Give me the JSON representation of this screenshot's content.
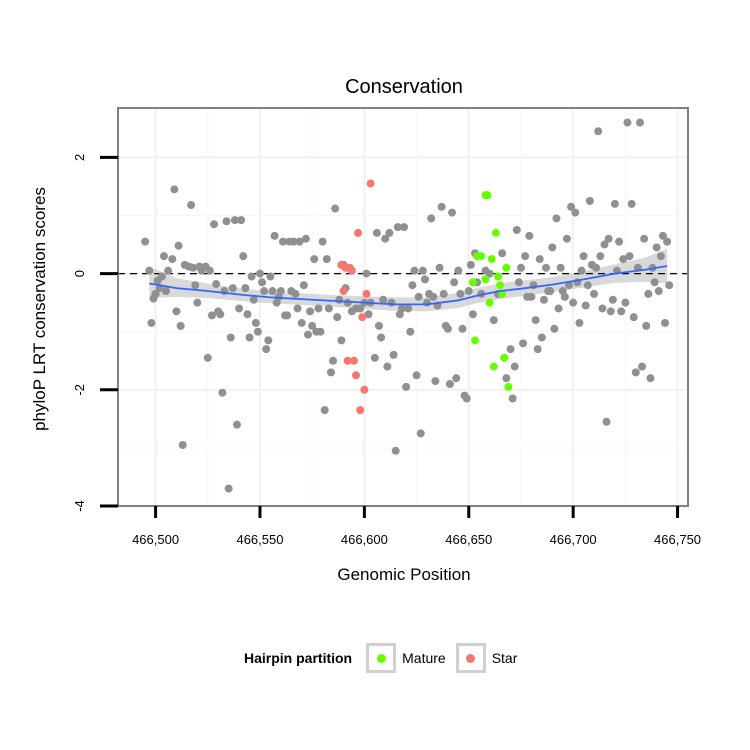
{
  "chart_data": {
    "type": "scatter",
    "title": "Conservation",
    "xlabel": "Genomic Position",
    "ylabel": "phyloP LRT conservation scores",
    "xlim": [
      466482,
      466755
    ],
    "ylim": [
      -4,
      2.85
    ],
    "x_ticks": [
      466500,
      466550,
      466600,
      466650,
      466700,
      466750
    ],
    "x_tick_labels": [
      "466,500",
      "466,550",
      "466,600",
      "466,650",
      "466,700",
      "466,750"
    ],
    "y_ticks": [
      -4,
      -2,
      0,
      2
    ],
    "y_tick_labels": [
      "-4",
      "-2",
      "0",
      "2"
    ],
    "reference_line_y": 0,
    "legend": {
      "title": "Hairpin partition",
      "position": "bottom",
      "entries": [
        {
          "label": "Mature",
          "color": "#66ff00"
        },
        {
          "label": "Star",
          "color": "#f8766d"
        }
      ]
    },
    "colors": {
      "other": "#909090",
      "smooth_line": "#3366ff",
      "band": "#cccccc",
      "reference_line": "#000000",
      "panel_border": "#808080"
    },
    "smooth": {
      "x": [
        466497,
        466510,
        466525,
        466540,
        466555,
        466570,
        466585,
        466600,
        466615,
        466630,
        466645,
        466655,
        466665,
        466675,
        466690,
        466705,
        466720,
        466735,
        466745
      ],
      "y": [
        -0.17,
        -0.25,
        -0.3,
        -0.36,
        -0.41,
        -0.44,
        -0.47,
        -0.5,
        -0.53,
        -0.53,
        -0.46,
        -0.37,
        -0.3,
        -0.26,
        -0.19,
        -0.1,
        0.0,
        0.07,
        0.13
      ],
      "lower": [
        -0.42,
        -0.4,
        -0.42,
        -0.47,
        -0.51,
        -0.54,
        -0.57,
        -0.61,
        -0.64,
        -0.65,
        -0.59,
        -0.5,
        -0.44,
        -0.39,
        -0.32,
        -0.24,
        -0.16,
        -0.14,
        -0.17
      ],
      "upper": [
        0.12,
        -0.08,
        -0.17,
        -0.25,
        -0.31,
        -0.34,
        -0.37,
        -0.39,
        -0.41,
        -0.41,
        -0.33,
        -0.24,
        -0.17,
        -0.12,
        -0.06,
        0.04,
        0.16,
        0.28,
        0.43
      ]
    },
    "series": [
      {
        "name": "Other",
        "color": "#909090",
        "points": [
          [
            466495,
            0.55
          ],
          [
            466497,
            0.05
          ],
          [
            466498,
            -0.85
          ],
          [
            466499,
            -0.43
          ],
          [
            466500,
            -0.35
          ],
          [
            466501,
            -0.12
          ],
          [
            466502,
            -0.25
          ],
          [
            466503,
            -0.05
          ],
          [
            466504,
            0.3
          ],
          [
            466505,
            -0.3
          ],
          [
            466506,
            0.05
          ],
          [
            466508,
            0.25
          ],
          [
            466509,
            1.45
          ],
          [
            466510,
            -0.65
          ],
          [
            466511,
            0.48
          ],
          [
            466512,
            -0.9
          ],
          [
            466513,
            -2.95
          ],
          [
            466514,
            0.15
          ],
          [
            466516,
            0.12
          ],
          [
            466517,
            1.18
          ],
          [
            466518,
            0.1
          ],
          [
            466519,
            -0.2
          ],
          [
            466520,
            -0.5
          ],
          [
            466521,
            0.12
          ],
          [
            466522,
            0.05
          ],
          [
            466524,
            0.12
          ],
          [
            466525,
            -1.45
          ],
          [
            466526,
            0.05
          ],
          [
            466527,
            -0.72
          ],
          [
            466528,
            0.85
          ],
          [
            466529,
            -0.18
          ],
          [
            466530,
            -0.65
          ],
          [
            466531,
            -0.7
          ],
          [
            466532,
            -2.05
          ],
          [
            466533,
            -0.3
          ],
          [
            466534,
            0.9
          ],
          [
            466535,
            -3.7
          ],
          [
            466536,
            -1.1
          ],
          [
            466537,
            -0.25
          ],
          [
            466538,
            0.92
          ],
          [
            466539,
            -2.6
          ],
          [
            466540,
            -0.6
          ],
          [
            466541,
            0.92
          ],
          [
            466542,
            0.3
          ],
          [
            466543,
            -0.25
          ],
          [
            466544,
            -0.7
          ],
          [
            466545,
            -1.1
          ],
          [
            466546,
            -0.05
          ],
          [
            466547,
            -0.45
          ],
          [
            466548,
            -0.85
          ],
          [
            466549,
            -1.0
          ],
          [
            466550,
            0.0
          ],
          [
            466551,
            -0.15
          ],
          [
            466552,
            -0.3
          ],
          [
            466553,
            -1.3
          ],
          [
            466554,
            -1.15
          ],
          [
            466555,
            -0.05
          ],
          [
            466556,
            -0.3
          ],
          [
            466557,
            0.65
          ],
          [
            466558,
            -0.5
          ],
          [
            466559,
            -0.4
          ],
          [
            466560,
            -0.3
          ],
          [
            466561,
            0.55
          ],
          [
            466562,
            -0.72
          ],
          [
            466563,
            -0.72
          ],
          [
            466564,
            0.55
          ],
          [
            466565,
            -0.3
          ],
          [
            466566,
            0.55
          ],
          [
            466567,
            -0.35
          ],
          [
            466568,
            -0.6
          ],
          [
            466569,
            0.55
          ],
          [
            466570,
            -0.85
          ],
          [
            466571,
            -0.2
          ],
          [
            466572,
            0.6
          ],
          [
            466573,
            -1.05
          ],
          [
            466574,
            -0.65
          ],
          [
            466575,
            -0.9
          ],
          [
            466576,
            0.25
          ],
          [
            466577,
            -1.0
          ],
          [
            466578,
            -0.6
          ],
          [
            466579,
            -1.0
          ],
          [
            466580,
            0.55
          ],
          [
            466581,
            -2.35
          ],
          [
            466582,
            0.25
          ],
          [
            466583,
            -0.6
          ],
          [
            466584,
            -1.7
          ],
          [
            466585,
            -1.5
          ],
          [
            466586,
            1.12
          ],
          [
            466587,
            -0.75
          ],
          [
            466588,
            -0.45
          ],
          [
            466589,
            -1.15
          ],
          [
            466590,
            0.15
          ],
          [
            466591,
            -0.25
          ],
          [
            466592,
            -0.5
          ],
          [
            466594,
            -0.65
          ],
          [
            466596,
            -0.6
          ],
          [
            466598,
            -0.6
          ],
          [
            466600,
            -0.5
          ],
          [
            466601,
            0.0
          ],
          [
            466602,
            -0.7
          ],
          [
            466603,
            -0.5
          ],
          [
            466605,
            -1.45
          ],
          [
            466606,
            0.7
          ],
          [
            466607,
            -0.9
          ],
          [
            466608,
            -1.1
          ],
          [
            466609,
            -0.45
          ],
          [
            466610,
            0.6
          ],
          [
            466611,
            -1.6
          ],
          [
            466612,
            0.7
          ],
          [
            466613,
            -0.5
          ],
          [
            466614,
            -1.4
          ],
          [
            466615,
            -3.05
          ],
          [
            466616,
            0.8
          ],
          [
            466617,
            -0.7
          ],
          [
            466618,
            -0.6
          ],
          [
            466619,
            0.8
          ],
          [
            466620,
            -1.95
          ],
          [
            466621,
            -0.6
          ],
          [
            466622,
            -1.0
          ],
          [
            466623,
            -0.2
          ],
          [
            466624,
            0.05
          ],
          [
            466625,
            -1.75
          ],
          [
            466626,
            -0.4
          ],
          [
            466627,
            -2.75
          ],
          [
            466628,
            0.05
          ],
          [
            466629,
            -0.1
          ],
          [
            466630,
            -0.5
          ],
          [
            466631,
            -0.35
          ],
          [
            466632,
            0.95
          ],
          [
            466633,
            -0.4
          ],
          [
            466634,
            -1.85
          ],
          [
            466635,
            -0.55
          ],
          [
            466636,
            0.1
          ],
          [
            466637,
            1.15
          ],
          [
            466638,
            -0.35
          ],
          [
            466639,
            -0.9
          ],
          [
            466640,
            -0.95
          ],
          [
            466641,
            -1.9
          ],
          [
            466642,
            1.05
          ],
          [
            466643,
            -0.15
          ],
          [
            466644,
            -1.8
          ],
          [
            466645,
            0.05
          ],
          [
            466646,
            -0.35
          ],
          [
            466647,
            -0.95
          ],
          [
            466648,
            -2.1
          ],
          [
            466649,
            -2.15
          ],
          [
            466650,
            -0.3
          ],
          [
            466651,
            0.15
          ],
          [
            466652,
            -0.7
          ],
          [
            466653,
            0.35
          ],
          [
            466654,
            -0.15
          ],
          [
            466656,
            -0.35
          ],
          [
            466658,
            0.05
          ],
          [
            466660,
            0.0
          ],
          [
            466662,
            -0.8
          ],
          [
            466664,
            -0.35
          ],
          [
            466666,
            0.35
          ],
          [
            466668,
            -1.8
          ],
          [
            466670,
            -1.3
          ],
          [
            466671,
            -2.15
          ],
          [
            466672,
            -1.6
          ],
          [
            466673,
            0.75
          ],
          [
            466674,
            -0.15
          ],
          [
            466675,
            0.1
          ],
          [
            466676,
            -1.2
          ],
          [
            466677,
            0.3
          ],
          [
            466678,
            -0.4
          ],
          [
            466679,
            0.65
          ],
          [
            466680,
            -0.4
          ],
          [
            466681,
            -0.2
          ],
          [
            466682,
            -0.8
          ],
          [
            466683,
            -1.3
          ],
          [
            466684,
            0.25
          ],
          [
            466685,
            -1.1
          ],
          [
            466686,
            -0.45
          ],
          [
            466687,
            0.1
          ],
          [
            466688,
            -0.3
          ],
          [
            466689,
            -0.3
          ],
          [
            466690,
            0.45
          ],
          [
            466691,
            -0.95
          ],
          [
            466692,
            0.95
          ],
          [
            466693,
            -0.6
          ],
          [
            466694,
            0.1
          ],
          [
            466695,
            -0.3
          ],
          [
            466696,
            -0.4
          ],
          [
            466697,
            0.6
          ],
          [
            466698,
            -0.2
          ],
          [
            466699,
            1.15
          ],
          [
            466700,
            -0.5
          ],
          [
            466701,
            1.05
          ],
          [
            466702,
            -0.15
          ],
          [
            466703,
            -0.85
          ],
          [
            466704,
            0.05
          ],
          [
            466705,
            0.3
          ],
          [
            466706,
            -0.55
          ],
          [
            466707,
            -0.2
          ],
          [
            466708,
            1.25
          ],
          [
            466709,
            0.15
          ],
          [
            466710,
            -0.35
          ],
          [
            466711,
            0.1
          ],
          [
            466712,
            2.45
          ],
          [
            466713,
            0.3
          ],
          [
            466714,
            -0.6
          ],
          [
            466715,
            0.5
          ],
          [
            466716,
            -2.55
          ],
          [
            466717,
            0.6
          ],
          [
            466718,
            -0.65
          ],
          [
            466719,
            -0.45
          ],
          [
            466720,
            1.2
          ],
          [
            466721,
            0.05
          ],
          [
            466722,
            0.55
          ],
          [
            466723,
            -0.65
          ],
          [
            466724,
            0.25
          ],
          [
            466725,
            -0.5
          ],
          [
            466726,
            2.6
          ],
          [
            466727,
            0.3
          ],
          [
            466728,
            1.2
          ],
          [
            466729,
            -0.75
          ],
          [
            466730,
            -1.7
          ],
          [
            466731,
            0.1
          ],
          [
            466732,
            2.6
          ],
          [
            466733,
            -1.6
          ],
          [
            466734,
            0.6
          ],
          [
            466735,
            -0.9
          ],
          [
            466736,
            -0.35
          ],
          [
            466737,
            -1.8
          ],
          [
            466738,
            0.1
          ],
          [
            466739,
            -0.15
          ],
          [
            466740,
            0.45
          ],
          [
            466741,
            -0.3
          ],
          [
            466742,
            0.3
          ],
          [
            466743,
            0.65
          ],
          [
            466744,
            -0.85
          ],
          [
            466745,
            0.55
          ],
          [
            466746,
            -0.2
          ]
        ]
      },
      {
        "name": "Mature",
        "color": "#66ff00",
        "points": [
          [
            466652,
            -0.15
          ],
          [
            466653,
            -1.15
          ],
          [
            466654,
            0.3
          ],
          [
            466656,
            0.3
          ],
          [
            466658,
            -0.1
          ],
          [
            466658,
            1.35
          ],
          [
            466659,
            1.35
          ],
          [
            466660,
            -0.5
          ],
          [
            466661,
            0.25
          ],
          [
            466662,
            -1.6
          ],
          [
            466663,
            0.7
          ],
          [
            466664,
            -0.05
          ],
          [
            466665,
            -0.2
          ],
          [
            466666,
            -0.35
          ],
          [
            466667,
            -1.45
          ],
          [
            466668,
            0.1
          ],
          [
            466669,
            -1.95
          ]
        ]
      },
      {
        "name": "Star",
        "color": "#f8766d",
        "points": [
          [
            466589,
            0.15
          ],
          [
            466590,
            -0.3
          ],
          [
            466591,
            0.1
          ],
          [
            466592,
            -1.5
          ],
          [
            466593,
            0.1
          ],
          [
            466594,
            0.05
          ],
          [
            466595,
            -1.5
          ],
          [
            466596,
            -1.75
          ],
          [
            466597,
            0.7
          ],
          [
            466598,
            -2.35
          ],
          [
            466599,
            -0.75
          ],
          [
            466600,
            -2.0
          ],
          [
            466601,
            -0.35
          ],
          [
            466603,
            1.55
          ]
        ]
      }
    ]
  }
}
